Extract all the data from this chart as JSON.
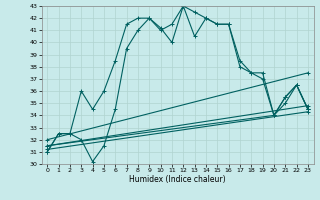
{
  "xlabel": "Humidex (Indice chaleur)",
  "xlim": [
    -0.5,
    23.5
  ],
  "ylim": [
    30,
    43
  ],
  "yticks": [
    30,
    31,
    32,
    33,
    34,
    35,
    36,
    37,
    38,
    39,
    40,
    41,
    42,
    43
  ],
  "xticks": [
    0,
    1,
    2,
    3,
    4,
    5,
    6,
    7,
    8,
    9,
    10,
    11,
    12,
    13,
    14,
    15,
    16,
    17,
    18,
    19,
    20,
    21,
    22,
    23
  ],
  "bg_color": "#c8eaea",
  "grid_color": "#b0d4d0",
  "line_color": "#006060",
  "line1_x": [
    0,
    1,
    2,
    3,
    4,
    5,
    6,
    7,
    8,
    9,
    10,
    11,
    12,
    13,
    14,
    15,
    16,
    17,
    18,
    19,
    20,
    21,
    22,
    23
  ],
  "line1_y": [
    31,
    32.5,
    32.5,
    36,
    34.5,
    36,
    38.5,
    41.5,
    42,
    42,
    41,
    41.5,
    43,
    42.5,
    42,
    41.5,
    41.5,
    38,
    37.5,
    37.5,
    34,
    35.5,
    36.5,
    34.5
  ],
  "line2_x": [
    0,
    1,
    2,
    3,
    4,
    5,
    6,
    7,
    8,
    9,
    10,
    11,
    12,
    13,
    14,
    15,
    16,
    17,
    18,
    19,
    20,
    21,
    22,
    23
  ],
  "line2_y": [
    31,
    32.5,
    32.5,
    32,
    30.2,
    31.5,
    34.5,
    39.5,
    41,
    42,
    41.2,
    40,
    43,
    40.5,
    42,
    41.5,
    41.5,
    38.5,
    37.5,
    37,
    34,
    35.5,
    36.5,
    34.5
  ],
  "line3_x": [
    0,
    23
  ],
  "line3_y": [
    32,
    37.5
  ],
  "line4_x": [
    0,
    23
  ],
  "line4_y": [
    31.5,
    34.8
  ],
  "line5_x": [
    0,
    23
  ],
  "line5_y": [
    31.2,
    34.3
  ],
  "line6_x": [
    0,
    20,
    21,
    22,
    23
  ],
  "line6_y": [
    31.5,
    34.0,
    35.0,
    36.5,
    34.5
  ]
}
